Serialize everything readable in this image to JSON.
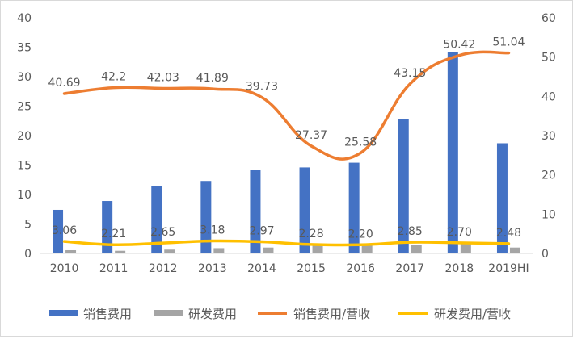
{
  "chart_data": {
    "type": "bar",
    "categories": [
      "2010",
      "2011",
      "2012",
      "2013",
      "2014",
      "2015",
      "2016",
      "2017",
      "2018",
      "2019HI"
    ],
    "series": [
      {
        "name": "销售费用",
        "type": "bar",
        "axis": "left",
        "color": "#4472c4",
        "values": [
          7.4,
          8.9,
          11.5,
          12.3,
          14.2,
          14.6,
          15.4,
          22.8,
          34.2,
          18.7
        ]
      },
      {
        "name": "研发费用",
        "type": "bar",
        "axis": "left",
        "color": "#a5a5a5",
        "values": [
          0.55,
          0.45,
          0.65,
          0.9,
          1.0,
          1.3,
          1.35,
          1.5,
          1.6,
          1.0
        ]
      },
      {
        "name": "销售费用/营收",
        "type": "line",
        "axis": "right",
        "color": "#ed7d31",
        "values": [
          40.69,
          42.2,
          42.03,
          41.89,
          39.73,
          27.37,
          25.58,
          43.15,
          50.42,
          51.04
        ],
        "labels": [
          "40.69",
          "42.2",
          "42.03",
          "41.89",
          "39.73",
          "27.37",
          "25.58",
          "43.15",
          "50.42",
          "51.04"
        ]
      },
      {
        "name": "研发费用/营收",
        "type": "line",
        "axis": "right",
        "color": "#ffc000",
        "values": [
          3.06,
          2.21,
          2.65,
          3.18,
          2.97,
          2.28,
          2.2,
          2.85,
          2.7,
          2.48
        ],
        "labels": [
          "3.06",
          "2.21",
          "2.65",
          "3.18",
          "2.97",
          "2.28",
          "2.20",
          "2.85",
          "2.70",
          "2.48"
        ]
      }
    ],
    "y_left": {
      "min": 0,
      "max": 40,
      "ticks": [
        "0",
        "5",
        "10",
        "15",
        "20",
        "25",
        "30",
        "35",
        "40"
      ]
    },
    "y_right": {
      "min": 0,
      "max": 60,
      "ticks": [
        "0",
        "10",
        "20",
        "30",
        "40",
        "50",
        "60"
      ]
    },
    "grid": false,
    "legend_position": "bottom",
    "title": "",
    "xlabel": "",
    "ylabel": ""
  }
}
